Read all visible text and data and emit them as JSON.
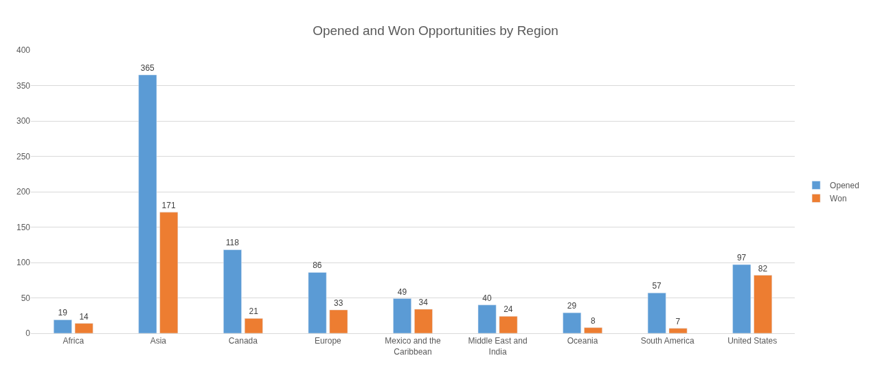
{
  "chart_data": {
    "type": "bar",
    "title": "Opened and Won Opportunities by Region",
    "categories": [
      "Africa",
      "Asia",
      "Canada",
      "Europe",
      "Mexico and the Caribbean",
      "Middle East and India",
      "Oceania",
      "South America",
      "United States"
    ],
    "series": [
      {
        "name": "Opened",
        "color": "#5b9bd5",
        "values": [
          19,
          365,
          118,
          86,
          49,
          40,
          29,
          57,
          97
        ]
      },
      {
        "name": "Won",
        "color": "#ed7d31",
        "values": [
          14,
          171,
          21,
          33,
          34,
          24,
          8,
          7,
          82
        ]
      }
    ],
    "ylim": [
      0,
      400
    ],
    "yticks": [
      0,
      50,
      100,
      150,
      200,
      250,
      300,
      350,
      400
    ],
    "grid": "y",
    "legend": "right",
    "data_labels": true
  }
}
